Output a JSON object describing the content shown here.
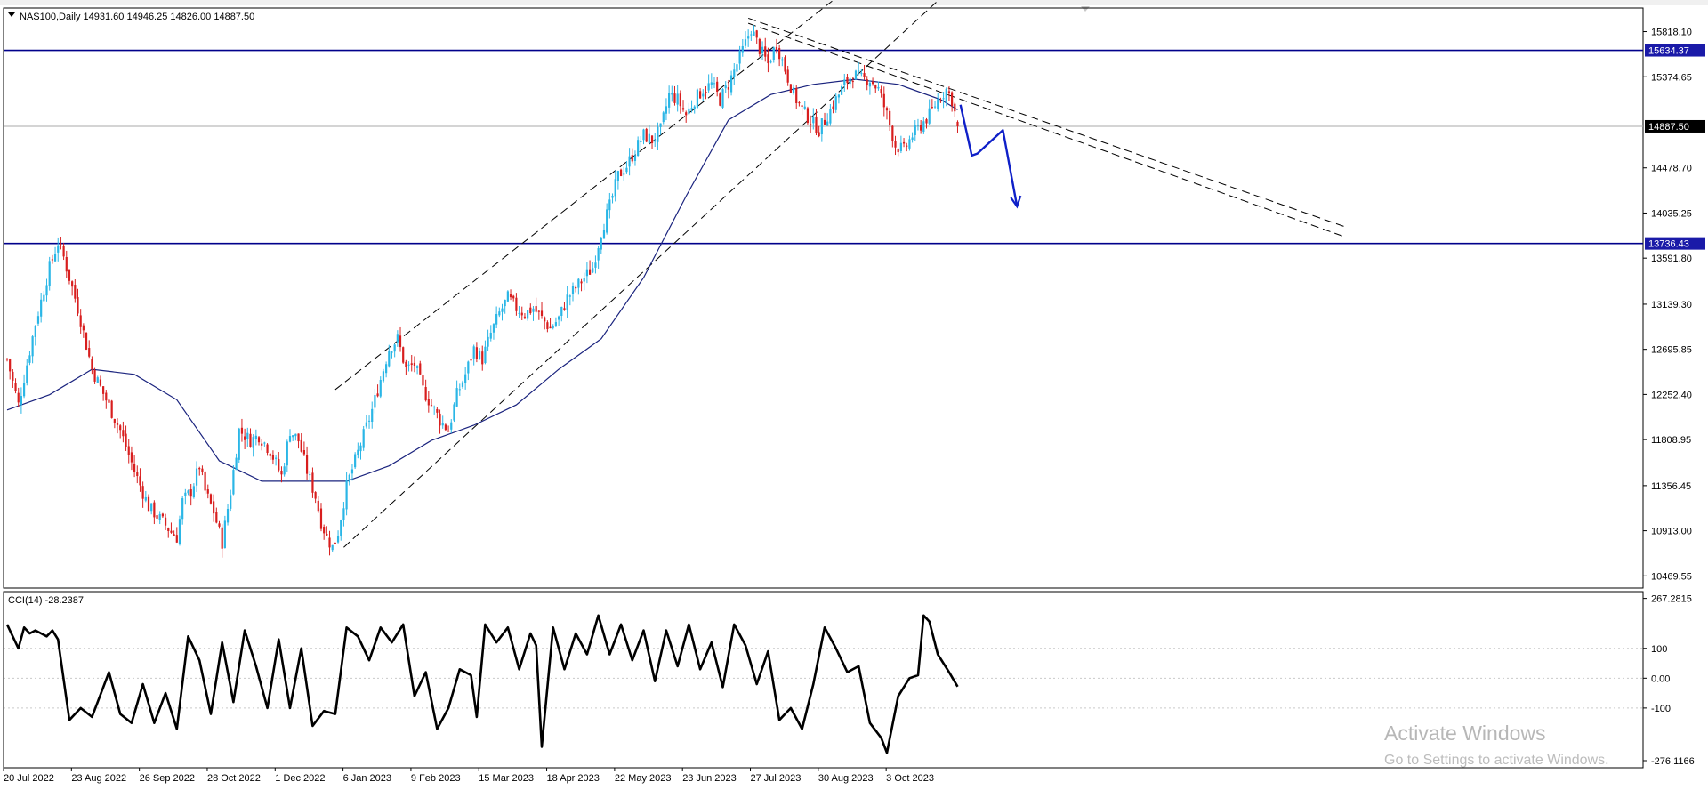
{
  "header": {
    "symbol_line": "NAS100,Daily  14931.60 14946.25 14826.00 14887.50"
  },
  "indicator": {
    "label": "CCI(14) -28.2387"
  },
  "watermark": {
    "line1": "Activate Windows",
    "line2": "Go to Settings to activate Windows."
  },
  "colors": {
    "bull": "#2ab6e6",
    "bear": "#d81e1e",
    "ma": "#1a237e",
    "level_line": "#00008b",
    "level_tag": "#1a1aa8",
    "last_price_tag": "#000000",
    "drawn_arrow": "#0f20c8",
    "cci_line": "#000000",
    "grid": "#c9c9c9"
  },
  "chart_data": [
    {
      "type": "candlestick",
      "symbol": "NAS100",
      "timeframe": "Daily",
      "ohlc_last": {
        "open": 14931.6,
        "high": 14946.25,
        "low": 14826.0,
        "close": 14887.5
      },
      "ylim": [
        10350,
        16050
      ],
      "y_ticks": [
        {
          "value": 15818.1,
          "label": "15818.10"
        },
        {
          "value": 15374.65,
          "label": "15374.65"
        },
        {
          "value": 14478.7,
          "label": "14478.70"
        },
        {
          "value": 14035.25,
          "label": "14035.25"
        },
        {
          "value": 13591.8,
          "label": "13591.80"
        },
        {
          "value": 13139.3,
          "label": "13139.30"
        },
        {
          "value": 12695.85,
          "label": "12695.85"
        },
        {
          "value": 12252.4,
          "label": "12252.40"
        },
        {
          "value": 11808.95,
          "label": "11808.95"
        },
        {
          "value": 11356.45,
          "label": "11356.45"
        },
        {
          "value": 10913.0,
          "label": "10913.00"
        },
        {
          "value": 10469.55,
          "label": "10469.55"
        }
      ],
      "x_labels": [
        "20 Jul 2022",
        "23 Aug 2022",
        "26 Sep 2022",
        "28 Oct 2022",
        "1 Dec 2022",
        "6 Jan 2023",
        "9 Feb 2023",
        "15 Mar 2023",
        "18 Apr 2023",
        "22 May 2023",
        "23 Jun 2023",
        "27 Jul 2023",
        "30 Aug 2023",
        "3 Oct 2023"
      ],
      "price_path": [
        [
          0,
          12600
        ],
        [
          4,
          12150
        ],
        [
          10,
          12950
        ],
        [
          15,
          13500
        ],
        [
          18,
          13750
        ],
        [
          20,
          13600
        ],
        [
          25,
          13100
        ],
        [
          30,
          12500
        ],
        [
          35,
          12200
        ],
        [
          40,
          11900
        ],
        [
          45,
          11500
        ],
        [
          50,
          11150
        ],
        [
          55,
          11000
        ],
        [
          58,
          10900
        ],
        [
          60,
          10850
        ],
        [
          62,
          11200
        ],
        [
          65,
          11300
        ],
        [
          68,
          11550
        ],
        [
          70,
          11300
        ],
        [
          73,
          11100
        ],
        [
          76,
          10800
        ],
        [
          79,
          11300
        ],
        [
          82,
          11900
        ],
        [
          86,
          11800
        ],
        [
          89,
          11850
        ],
        [
          93,
          11700
        ],
        [
          97,
          11450
        ],
        [
          100,
          11900
        ],
        [
          103,
          11800
        ],
        [
          106,
          11500
        ],
        [
          109,
          11250
        ],
        [
          111,
          11000
        ],
        [
          113,
          10850
        ],
        [
          115,
          10750
        ],
        [
          117,
          10900
        ],
        [
          120,
          11350
        ],
        [
          123,
          11600
        ],
        [
          126,
          11850
        ],
        [
          129,
          12100
        ],
        [
          132,
          12400
        ],
        [
          135,
          12700
        ],
        [
          138,
          12800
        ],
        [
          141,
          12500
        ],
        [
          144,
          12550
        ],
        [
          147,
          12300
        ],
        [
          150,
          12150
        ],
        [
          153,
          12000
        ],
        [
          156,
          11900
        ],
        [
          159,
          12250
        ],
        [
          162,
          12450
        ],
        [
          165,
          12700
        ],
        [
          168,
          12600
        ],
        [
          171,
          12850
        ],
        [
          174,
          13050
        ],
        [
          177,
          13200
        ],
        [
          180,
          13100
        ],
        [
          183,
          13050
        ],
        [
          186,
          13100
        ],
        [
          189,
          13000
        ],
        [
          192,
          12900
        ],
        [
          195,
          13000
        ],
        [
          198,
          13200
        ],
        [
          201,
          13300
        ],
        [
          204,
          13400
        ],
        [
          207,
          13500
        ],
        [
          210,
          13850
        ],
        [
          213,
          14100
        ],
        [
          216,
          14400
        ],
        [
          219,
          14500
        ],
        [
          222,
          14650
        ],
        [
          225,
          14800
        ],
        [
          228,
          14750
        ],
        [
          231,
          14850
        ],
        [
          234,
          15200
        ],
        [
          237,
          15150
        ],
        [
          240,
          15000
        ],
        [
          243,
          15150
        ],
        [
          246,
          15250
        ],
        [
          249,
          15300
        ],
        [
          252,
          15150
        ],
        [
          255,
          15300
        ],
        [
          258,
          15500
        ],
        [
          261,
          15700
        ],
        [
          263,
          15850
        ],
        [
          266,
          15650
        ],
        [
          269,
          15500
        ],
        [
          272,
          15700
        ],
        [
          275,
          15450
        ],
        [
          278,
          15200
        ],
        [
          281,
          15050
        ],
        [
          284,
          14950
        ],
        [
          287,
          14850
        ],
        [
          290,
          15000
        ],
        [
          293,
          15150
        ],
        [
          296,
          15300
        ],
        [
          299,
          15400
        ],
        [
          302,
          15350
        ],
        [
          305,
          15350
        ],
        [
          308,
          15250
        ],
        [
          311,
          15000
        ],
        [
          314,
          14700
        ],
        [
          317,
          14650
        ],
        [
          320,
          14800
        ],
        [
          323,
          14900
        ],
        [
          326,
          15000
        ],
        [
          329,
          15150
        ],
        [
          332,
          15250
        ],
        [
          334,
          15150
        ],
        [
          336,
          14887.5
        ]
      ],
      "moving_average_path": [
        [
          0,
          12100
        ],
        [
          15,
          12250
        ],
        [
          30,
          12500
        ],
        [
          45,
          12450
        ],
        [
          60,
          12200
        ],
        [
          75,
          11600
        ],
        [
          90,
          11400
        ],
        [
          105,
          11400
        ],
        [
          120,
          11400
        ],
        [
          135,
          11550
        ],
        [
          150,
          11800
        ],
        [
          165,
          11950
        ],
        [
          180,
          12150
        ],
        [
          195,
          12500
        ],
        [
          210,
          12800
        ],
        [
          225,
          13400
        ],
        [
          240,
          14200
        ],
        [
          255,
          14950
        ],
        [
          270,
          15200
        ],
        [
          285,
          15300
        ],
        [
          300,
          15350
        ],
        [
          315,
          15300
        ],
        [
          330,
          15150
        ],
        [
          336,
          15050
        ]
      ],
      "horizontal_levels": [
        {
          "value": 15634.37,
          "label": "15634.37"
        },
        {
          "value": 13736.43,
          "label": "13736.43"
        }
      ],
      "last_price": {
        "value": 14887.5,
        "label": "14887.50"
      },
      "trendlines": {
        "channel_upper": [
          [
            116,
            12300
          ],
          [
            300,
            16300
          ]
        ],
        "channel_lower": [
          [
            119,
            10750
          ],
          [
            336,
            16300
          ]
        ],
        "descending_a": [
          [
            262,
            15950
          ],
          [
            473,
            13900
          ]
        ],
        "descending_b": [
          [
            262,
            15900
          ],
          [
            473,
            13800
          ]
        ]
      },
      "projection_arrow": [
        [
          337,
          15100
        ],
        [
          341,
          14600
        ],
        [
          343,
          14620
        ],
        [
          352,
          14850
        ],
        [
          355,
          14400
        ],
        [
          357,
          14100
        ]
      ]
    },
    {
      "type": "line",
      "name": "CCI(14)",
      "current_value": -28.2387,
      "ylim": [
        -300,
        290
      ],
      "y_ticks": [
        {
          "value": 267.2815,
          "label": "267.2815"
        },
        {
          "value": 100,
          "label": "100"
        },
        {
          "value": 0,
          "label": "0.00"
        },
        {
          "value": -100,
          "label": "-100"
        },
        {
          "value": -276.1166,
          "label": "-276.1166"
        }
      ],
      "values": [
        [
          0,
          180
        ],
        [
          4,
          100
        ],
        [
          6,
          170
        ],
        [
          8,
          150
        ],
        [
          10,
          160
        ],
        [
          14,
          140
        ],
        [
          16,
          160
        ],
        [
          18,
          130
        ],
        [
          22,
          -140
        ],
        [
          26,
          -100
        ],
        [
          30,
          -130
        ],
        [
          36,
          20
        ],
        [
          40,
          -120
        ],
        [
          44,
          -150
        ],
        [
          48,
          -20
        ],
        [
          52,
          -150
        ],
        [
          56,
          -50
        ],
        [
          60,
          -170
        ],
        [
          64,
          140
        ],
        [
          68,
          60
        ],
        [
          72,
          -120
        ],
        [
          76,
          120
        ],
        [
          80,
          -80
        ],
        [
          84,
          160
        ],
        [
          88,
          40
        ],
        [
          92,
          -100
        ],
        [
          96,
          130
        ],
        [
          100,
          -100
        ],
        [
          104,
          100
        ],
        [
          108,
          -160
        ],
        [
          112,
          -110
        ],
        [
          116,
          -120
        ],
        [
          120,
          170
        ],
        [
          124,
          140
        ],
        [
          128,
          60
        ],
        [
          132,
          170
        ],
        [
          136,
          120
        ],
        [
          140,
          180
        ],
        [
          144,
          -60
        ],
        [
          148,
          20
        ],
        [
          152,
          -170
        ],
        [
          156,
          -100
        ],
        [
          160,
          30
        ],
        [
          164,
          10
        ],
        [
          166,
          -130
        ],
        [
          169,
          180
        ],
        [
          173,
          120
        ],
        [
          177,
          170
        ],
        [
          181,
          30
        ],
        [
          185,
          150
        ],
        [
          187,
          110
        ],
        [
          189,
          -230
        ],
        [
          193,
          170
        ],
        [
          197,
          30
        ],
        [
          201,
          150
        ],
        [
          205,
          80
        ],
        [
          209,
          210
        ],
        [
          213,
          80
        ],
        [
          217,
          180
        ],
        [
          221,
          60
        ],
        [
          225,
          160
        ],
        [
          229,
          -10
        ],
        [
          233,
          160
        ],
        [
          237,
          40
        ],
        [
          241,
          180
        ],
        [
          245,
          30
        ],
        [
          249,
          120
        ],
        [
          253,
          -30
        ],
        [
          257,
          180
        ],
        [
          261,
          110
        ],
        [
          265,
          -20
        ],
        [
          269,
          90
        ],
        [
          273,
          -140
        ],
        [
          277,
          -100
        ],
        [
          281,
          -170
        ],
        [
          285,
          -20
        ],
        [
          289,
          170
        ],
        [
          293,
          100
        ],
        [
          297,
          20
        ],
        [
          301,
          40
        ],
        [
          305,
          -150
        ],
        [
          309,
          -200
        ],
        [
          311,
          -250
        ],
        [
          315,
          -60
        ],
        [
          319,
          0
        ],
        [
          322,
          10
        ],
        [
          324,
          210
        ],
        [
          326,
          190
        ],
        [
          329,
          80
        ],
        [
          333,
          20
        ],
        [
          336,
          -28.2387
        ]
      ]
    }
  ]
}
